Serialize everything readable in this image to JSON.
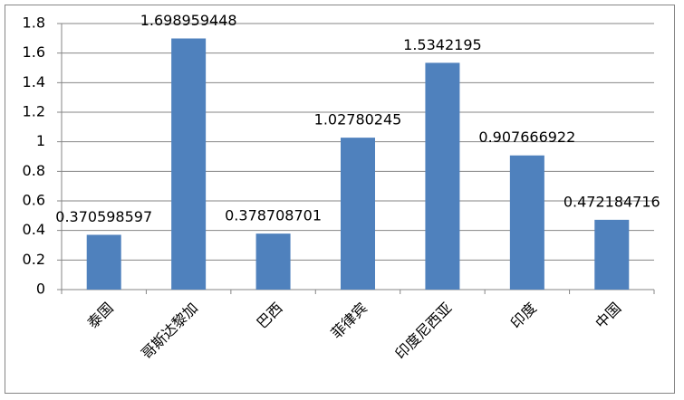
{
  "chart_data": {
    "type": "bar",
    "categories": [
      "泰国",
      "哥斯达黎加",
      "巴西",
      "菲律宾",
      "印度尼西亚",
      "印度",
      "中国"
    ],
    "values": [
      0.370598597,
      1.698959448,
      0.378708701,
      1.02780245,
      1.5342195,
      0.907666922,
      0.472184716
    ],
    "color": "#4f81bd",
    "ylim": [
      0,
      1.8
    ],
    "yticks": [
      0,
      0.2,
      0.4,
      0.6,
      0.8,
      1,
      1.2,
      1.4,
      1.6,
      1.8
    ],
    "grid": true
  }
}
